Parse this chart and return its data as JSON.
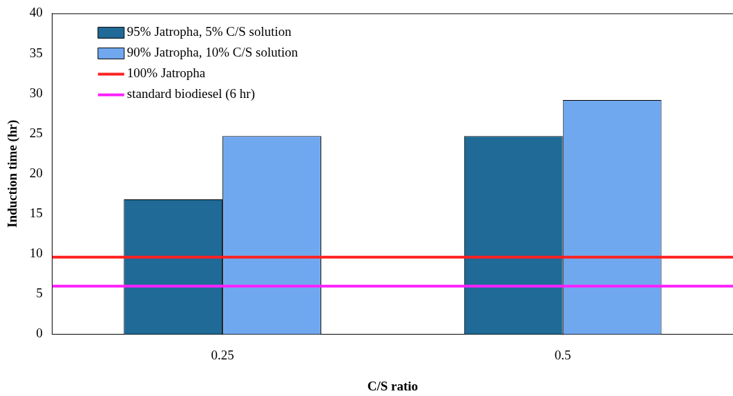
{
  "chart_data": {
    "type": "bar",
    "xlabel": "C/S ratio",
    "ylabel": "Induction time (hr)",
    "categories": [
      "0.25",
      "0.5"
    ],
    "series": [
      {
        "name": "95% Jatropha, 5% C/S solution",
        "color": "#1f6a96",
        "values": [
          16.8,
          24.7
        ]
      },
      {
        "name": "90% Jatropha, 10% C/S solution",
        "color": "#70a8f0",
        "values": [
          24.7,
          29.2
        ]
      }
    ],
    "ref_lines": [
      {
        "axis": "y",
        "value": 9.6,
        "label": "100% Jatropha",
        "color": "#ff2020"
      },
      {
        "axis": "y",
        "value": 6,
        "label": "standard biodiesel (6 hr)",
        "color": "#ff20ff"
      }
    ],
    "ylim": [
      0,
      40
    ],
    "yticks": [
      0,
      5,
      10,
      15,
      20,
      25,
      30,
      35,
      40
    ],
    "grid": false,
    "legend": "top left"
  }
}
